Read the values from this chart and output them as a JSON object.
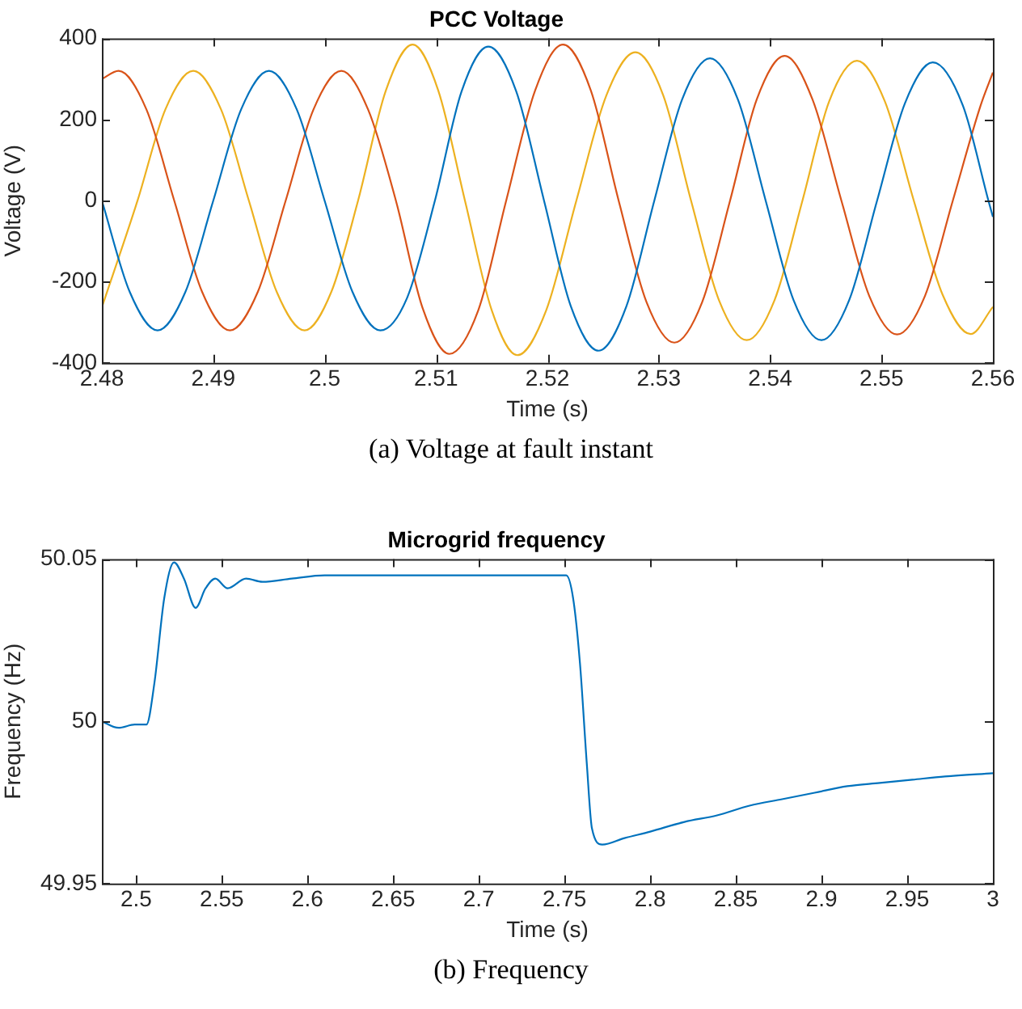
{
  "chart_data": [
    {
      "type": "line",
      "title": "PCC Voltage",
      "xlabel": "Time (s)",
      "ylabel": "Voltage (V)",
      "xlim": [
        2.48,
        2.56
      ],
      "xticks": [
        2.48,
        2.49,
        2.5,
        2.51,
        2.52,
        2.53,
        2.54,
        2.55,
        2.56
      ],
      "ylim": [
        -400,
        400
      ],
      "yticks": [
        -400,
        -200,
        0,
        200,
        400
      ],
      "grid": false,
      "legend": false,
      "annotations": [
        "(a) Voltage at fault instant"
      ],
      "series": [
        {
          "color": "#0072bd",
          "x": [
            2.48,
            2.4825,
            2.485,
            2.4875,
            2.49,
            2.4925,
            2.495,
            2.4975,
            2.5,
            2.5025,
            2.505,
            2.5074,
            2.5099,
            2.5123,
            2.5147,
            2.5172,
            2.5197,
            2.5221,
            2.5246,
            2.5271,
            2.5296,
            2.5321,
            2.5346,
            2.5371,
            2.5396,
            2.5421,
            2.5446,
            2.5471,
            2.5496,
            2.5521,
            2.5546,
            2.5573,
            2.5596,
            2.56
          ],
          "values": [
            0,
            -225,
            -320,
            -225,
            0,
            225,
            320,
            225,
            0,
            -225,
            -320,
            -240,
            0,
            270,
            380,
            270,
            0,
            -260,
            -370,
            -260,
            0,
            250,
            351,
            250,
            0,
            -245,
            -344,
            -245,
            0,
            240,
            341,
            235,
            0,
            -40
          ]
        },
        {
          "color": "#d95319",
          "x": [
            2.48,
            2.4815,
            2.484,
            2.4865,
            2.489,
            2.4915,
            2.494,
            2.4965,
            2.499,
            2.5015,
            2.5039,
            2.5064,
            2.5088,
            2.5112,
            2.5138,
            2.5163,
            2.5189,
            2.5214,
            2.5239,
            2.5264,
            2.5289,
            2.5314,
            2.5339,
            2.5364,
            2.5388,
            2.5413,
            2.5438,
            2.5464,
            2.5489,
            2.5514,
            2.5539,
            2.5564,
            2.5589,
            2.56
          ],
          "values": [
            300,
            320,
            225,
            0,
            -225,
            -320,
            -225,
            0,
            225,
            320,
            225,
            0,
            -265,
            -378,
            -270,
            0,
            272,
            385,
            272,
            0,
            -250,
            -350,
            -250,
            0,
            250,
            357,
            250,
            0,
            -235,
            -330,
            -235,
            0,
            235,
            316
          ]
        },
        {
          "color": "#edb120",
          "x": [
            2.48,
            2.4832,
            2.4857,
            2.4882,
            2.4907,
            2.4932,
            2.4957,
            2.4982,
            2.5006,
            2.503,
            2.5055,
            2.5079,
            2.5102,
            2.5126,
            2.515,
            2.5173,
            2.5199,
            2.5226,
            2.5253,
            2.5279,
            2.5304,
            2.5329,
            2.5354,
            2.5379,
            2.5404,
            2.5429,
            2.5453,
            2.5478,
            2.5503,
            2.5529,
            2.5555,
            2.558,
            2.56
          ],
          "values": [
            -263,
            0,
            225,
            320,
            225,
            0,
            -225,
            -320,
            -225,
            0,
            272,
            385,
            272,
            0,
            -270,
            -381,
            -270,
            0,
            260,
            366,
            260,
            0,
            -245,
            -344,
            -245,
            0,
            245,
            345,
            245,
            0,
            -233,
            -329,
            -262
          ]
        }
      ]
    },
    {
      "type": "line",
      "title": "Microgrid frequency",
      "xlabel": "Time (s)",
      "ylabel": "Frequency (Hz)",
      "xlim": [
        2.48,
        3
      ],
      "xticks": [
        2.5,
        2.55,
        2.6,
        2.65,
        2.7,
        2.75,
        2.8,
        2.85,
        2.9,
        2.95,
        3
      ],
      "ylim": [
        49.95,
        50.05
      ],
      "yticks": [
        49.95,
        50,
        50.05
      ],
      "grid": false,
      "legend": false,
      "annotations": [
        "(b) Frequency"
      ],
      "series": [
        {
          "color": "#0072bd",
          "x": [
            2.48,
            2.4897,
            2.4992,
            2.506,
            2.5107,
            2.5164,
            2.5221,
            2.5279,
            2.5347,
            2.5405,
            2.5462,
            2.5534,
            2.5641,
            2.5737,
            2.5908,
            2.61,
            2.629,
            2.648,
            2.667,
            2.686,
            2.705,
            2.724,
            2.744,
            2.751,
            2.755,
            2.759,
            2.763,
            2.766,
            2.772,
            2.785,
            2.8,
            2.82,
            2.839,
            2.858,
            2.877,
            2.896,
            2.915,
            2.934,
            2.953,
            2.972,
            3
          ],
          "values": [
            50.0,
            49.998,
            49.999,
            49.999,
            50.012,
            50.038,
            50.049,
            50.044,
            50.035,
            50.041,
            50.044,
            50.041,
            50.044,
            50.043,
            50.044,
            50.045,
            50.045,
            50.045,
            50.045,
            50.045,
            50.045,
            50.045,
            50.045,
            50.045,
            50.038,
            50.018,
            49.987,
            49.967,
            49.962,
            49.964,
            49.966,
            49.969,
            49.971,
            49.974,
            49.976,
            49.978,
            49.98,
            49.981,
            49.982,
            49.983,
            49.984
          ]
        }
      ]
    }
  ]
}
